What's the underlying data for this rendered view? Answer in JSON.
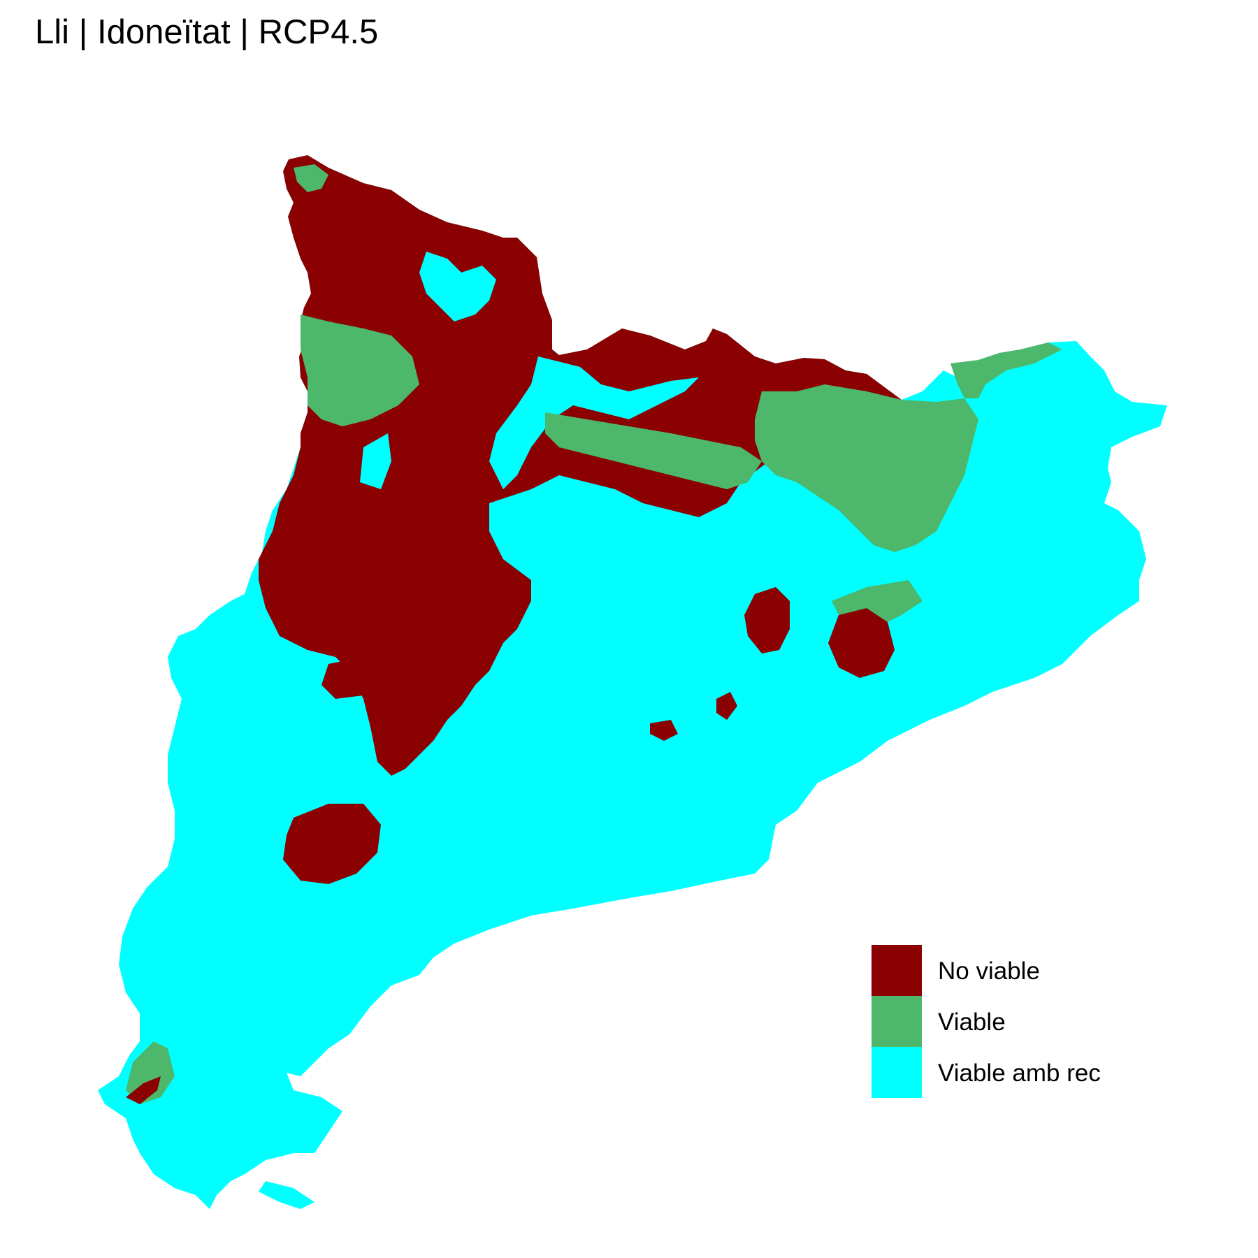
{
  "title": "Lli | Idoneïtat | RCP4.5",
  "legend": {
    "items": [
      {
        "label": "No viable",
        "color": "#8B0000"
      },
      {
        "label": "Viable",
        "color": "#4DB86C"
      },
      {
        "label": "Viable amb rec",
        "color": "#00FFFF"
      }
    ]
  }
}
